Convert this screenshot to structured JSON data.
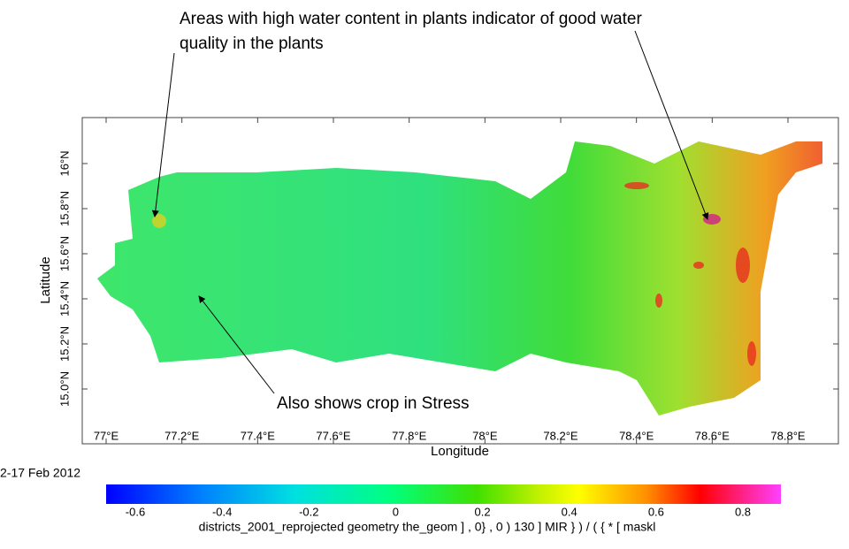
{
  "annotations": {
    "top": [
      "Areas with high water content in plants indicator of good water",
      "quality in the plants"
    ],
    "bottom": "Also shows crop in Stress"
  },
  "map": {
    "xlabel": "Longitude",
    "ylabel": "Latitude",
    "xticks": [
      "77°E",
      "77.2°E",
      "77.4°E",
      "77.6°E",
      "77.8°E",
      "78°E",
      "78.2°E",
      "78.4°E",
      "78.6°E",
      "78.8°E"
    ],
    "yticks": [
      "16°N",
      "15.8°N",
      "15.6°N",
      "15.4°N",
      "15.2°N",
      "15.0°N"
    ]
  },
  "date": "2-17 Feb 2012",
  "colorbar": {
    "ticks": [
      "-0.6",
      "-0.4",
      "-0.2",
      "0",
      "0.2",
      "0.4",
      "0.6",
      "0.8"
    ],
    "caption": "districts_2001_reprojected geometry the_geom ] , 0}     , 0 ) 130 ] MIR } ) / ( { * [ maskl"
  }
}
